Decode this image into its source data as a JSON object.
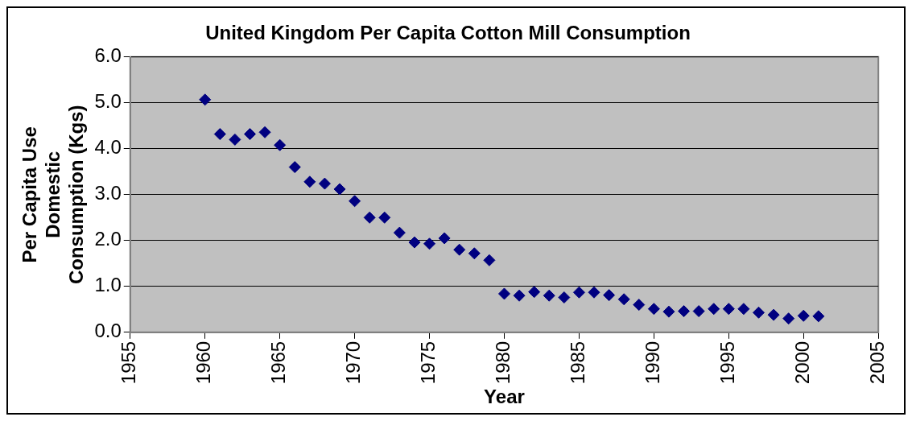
{
  "chart_data": {
    "type": "scatter",
    "title": "United Kingdom Per Capita Cotton Mill Consumption",
    "xlabel": "Year",
    "ylabel": "Per Capita Use Domestic Consumption (Kgs)",
    "x": [
      1960,
      1961,
      1962,
      1963,
      1964,
      1965,
      1966,
      1967,
      1968,
      1969,
      1970,
      1971,
      1972,
      1973,
      1974,
      1975,
      1976,
      1977,
      1978,
      1979,
      1980,
      1981,
      1982,
      1983,
      1984,
      1985,
      1986,
      1987,
      1988,
      1989,
      1990,
      1991,
      1992,
      1993,
      1994,
      1995,
      1996,
      1997,
      1998,
      1999,
      2000,
      2001
    ],
    "series": [
      {
        "color": "#000080",
        "values": [
          5.07,
          4.32,
          4.2,
          4.32,
          4.36,
          4.08,
          3.6,
          3.28,
          3.24,
          3.12,
          2.86,
          2.5,
          2.5,
          2.17,
          1.96,
          1.93,
          2.05,
          1.8,
          1.72,
          1.57,
          0.84,
          0.8,
          0.88,
          0.8,
          0.76,
          0.87,
          0.87,
          0.81,
          0.72,
          0.6,
          0.51,
          0.45,
          0.46,
          0.46,
          0.51,
          0.51,
          0.51,
          0.43,
          0.38,
          0.3,
          0.36,
          0.35
        ]
      }
    ],
    "xlim": [
      1955,
      2005
    ],
    "xticks": [
      1955,
      1960,
      1965,
      1970,
      1975,
      1980,
      1985,
      1990,
      1995,
      2000,
      2005
    ],
    "ylim": [
      0,
      6
    ],
    "yticks": [
      {
        "value": 0,
        "label": "0.0"
      },
      {
        "value": 1,
        "label": "1.0"
      },
      {
        "value": 2,
        "label": "2.0"
      },
      {
        "value": 3,
        "label": "3.0"
      },
      {
        "value": 4,
        "label": "4.0"
      },
      {
        "value": 5,
        "label": "5.0"
      },
      {
        "value": 6,
        "label": "6.0"
      }
    ],
    "grid": "y",
    "legend": false,
    "marker": "diamond"
  }
}
